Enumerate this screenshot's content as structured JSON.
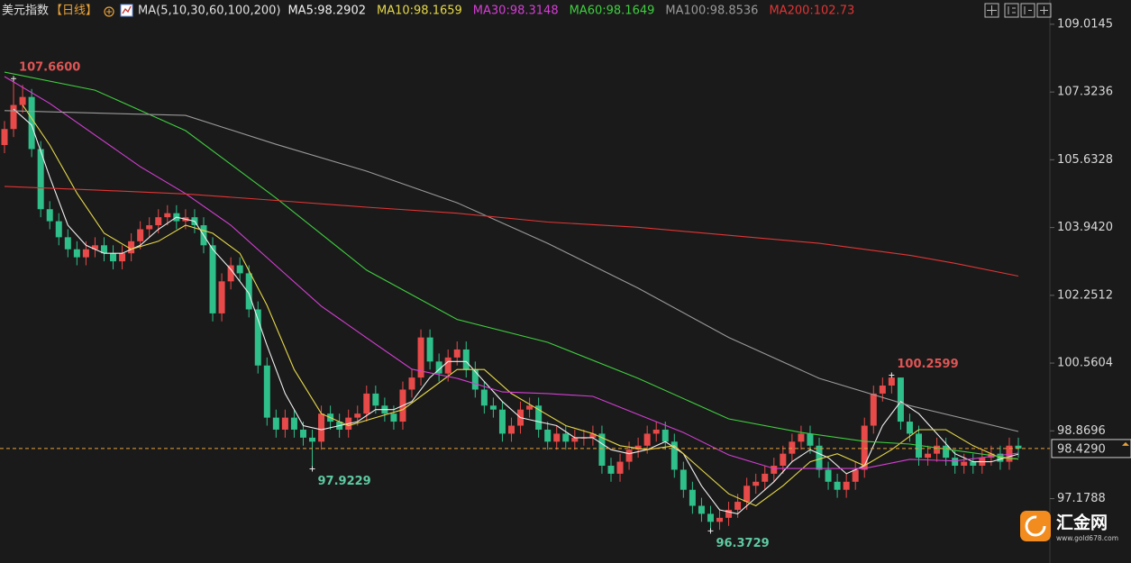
{
  "chart_data": {
    "type": "candlestick",
    "title": "美元指数",
    "period": "【日线】",
    "ma_label": "MA(5,10,30,60,100,200)",
    "ylim": [
      96.0,
      109.17
    ],
    "yticks": [
      97.1788,
      98.8696,
      100.5604,
      102.2512,
      {
        "value": 103.942,
        "label": "103.9420"
      },
      105.6328,
      107.3236,
      109.0145
    ],
    "up_color": "#e84a4a",
    "down_color": "#2fbf8a",
    "ohlc": {
      "open": [
        106.0,
        106.4,
        107.0,
        107.2,
        105.9,
        104.4,
        104.1,
        103.7,
        103.4,
        103.2,
        103.4,
        103.5,
        103.3,
        103.1,
        103.3,
        103.6,
        103.9,
        104.0,
        104.2,
        104.3,
        104.1,
        104.2,
        104.0,
        103.5,
        101.8,
        102.6,
        103.0,
        102.8,
        101.9,
        100.5,
        99.2,
        98.9,
        99.2,
        98.9,
        98.7,
        98.6,
        99.3,
        99.1,
        98.9,
        99.2,
        99.3,
        99.8,
        99.5,
        99.3,
        99.1,
        99.9,
        100.2,
        101.2,
        100.6,
        100.3,
        100.7,
        100.9,
        100.4,
        99.9,
        99.5,
        99.4,
        98.8,
        99.0,
        99.4,
        99.5,
        98.9,
        98.6,
        98.8,
        98.6,
        98.7,
        98.7,
        98.8,
        98.0,
        97.8,
        98.1,
        98.4,
        98.5,
        98.8,
        98.9,
        98.6,
        97.9,
        97.4,
        97.0,
        96.8,
        96.6,
        96.7,
        96.9,
        97.1,
        97.5,
        97.6,
        97.8,
        98.0,
        98.3,
        98.6,
        98.8,
        98.5,
        97.9,
        97.6,
        97.4,
        97.6,
        97.9,
        99.0,
        99.8,
        100.0,
        100.2,
        99.1,
        98.8,
        98.2,
        98.3,
        98.5,
        98.2,
        98.0,
        98.1,
        98.0,
        98.2,
        98.3,
        98.1,
        98.5
      ],
      "high": [
        106.6,
        107.66,
        107.5,
        107.4,
        106.1,
        104.6,
        104.3,
        103.9,
        103.6,
        103.6,
        103.7,
        103.7,
        103.5,
        103.5,
        103.8,
        104.1,
        104.2,
        104.4,
        104.5,
        104.5,
        104.4,
        104.4,
        104.2,
        103.7,
        102.8,
        103.2,
        103.2,
        103.0,
        102.1,
        100.7,
        99.4,
        99.4,
        99.4,
        99.1,
        98.9,
        99.5,
        99.5,
        99.3,
        99.4,
        99.5,
        100.0,
        100.0,
        99.7,
        99.5,
        100.1,
        100.4,
        101.4,
        101.4,
        100.8,
        100.9,
        101.1,
        101.1,
        100.6,
        100.1,
        99.7,
        99.6,
        99.2,
        99.6,
        99.7,
        99.7,
        99.1,
        99.0,
        99.0,
        98.9,
        98.9,
        99.0,
        99.0,
        98.2,
        98.3,
        98.6,
        98.7,
        99.0,
        99.1,
        99.1,
        98.8,
        98.1,
        97.6,
        97.2,
        97.0,
        96.9,
        97.1,
        97.3,
        97.7,
        97.8,
        98.0,
        98.2,
        98.5,
        98.8,
        99.0,
        99.0,
        98.7,
        98.1,
        97.8,
        97.8,
        98.1,
        99.2,
        100.0,
        100.2,
        100.2599,
        100.2,
        99.3,
        99.0,
        98.5,
        98.7,
        98.7,
        98.4,
        98.3,
        98.3,
        98.4,
        98.5,
        98.5,
        98.7,
        98.7
      ],
      "low": [
        105.8,
        106.2,
        106.8,
        105.7,
        104.2,
        103.9,
        103.5,
        103.2,
        103.0,
        103.0,
        103.2,
        103.1,
        102.9,
        102.9,
        103.1,
        103.4,
        103.7,
        103.8,
        104.0,
        103.9,
        103.9,
        103.8,
        103.3,
        101.6,
        101.6,
        102.4,
        102.6,
        101.7,
        100.3,
        99.0,
        98.7,
        98.7,
        98.7,
        98.5,
        97.9229,
        98.4,
        98.9,
        98.7,
        98.7,
        99.0,
        99.1,
        99.3,
        99.1,
        98.9,
        98.9,
        99.7,
        100.0,
        100.4,
        100.1,
        100.1,
        100.5,
        100.2,
        99.7,
        99.3,
        99.2,
        98.6,
        98.6,
        98.8,
        99.2,
        98.7,
        98.4,
        98.4,
        98.4,
        98.4,
        98.5,
        98.5,
        97.8,
        97.6,
        97.6,
        97.9,
        98.2,
        98.3,
        98.6,
        98.4,
        97.7,
        97.2,
        96.8,
        96.6,
        96.3729,
        96.4,
        96.5,
        96.7,
        96.9,
        97.3,
        97.4,
        97.6,
        97.8,
        98.1,
        98.4,
        98.3,
        97.7,
        97.4,
        97.2,
        97.2,
        97.4,
        97.7,
        98.8,
        99.6,
        99.8,
        98.9,
        98.6,
        98.0,
        98.0,
        98.1,
        98.0,
        97.8,
        97.8,
        97.8,
        97.8,
        98.0,
        97.9,
        97.9,
        98.2
      ],
      "close": [
        106.4,
        107.0,
        107.2,
        105.9,
        104.4,
        104.1,
        103.7,
        103.4,
        103.2,
        103.4,
        103.5,
        103.3,
        103.1,
        103.3,
        103.6,
        103.9,
        104.0,
        104.2,
        104.3,
        104.1,
        104.2,
        104.0,
        103.5,
        101.8,
        102.6,
        103.0,
        102.8,
        101.9,
        100.5,
        99.2,
        98.9,
        99.2,
        98.9,
        98.7,
        98.6,
        99.3,
        99.1,
        98.9,
        99.2,
        99.3,
        99.8,
        99.5,
        99.3,
        99.1,
        99.9,
        100.2,
        101.2,
        100.6,
        100.3,
        100.7,
        100.9,
        100.4,
        99.9,
        99.5,
        99.4,
        98.8,
        99.0,
        99.4,
        99.5,
        98.9,
        98.6,
        98.8,
        98.6,
        98.7,
        98.7,
        98.8,
        98.0,
        97.8,
        98.1,
        98.4,
        98.5,
        98.8,
        98.9,
        98.6,
        97.9,
        97.4,
        97.0,
        96.8,
        96.6,
        96.7,
        96.9,
        97.1,
        97.5,
        97.6,
        97.8,
        98.0,
        98.3,
        98.6,
        98.8,
        98.5,
        97.9,
        97.6,
        97.4,
        97.6,
        97.9,
        99.0,
        99.8,
        100.0,
        100.2,
        99.1,
        98.8,
        98.2,
        98.3,
        98.5,
        98.2,
        98.0,
        98.1,
        98.0,
        98.2,
        98.3,
        98.1,
        98.5,
        98.429
      ]
    },
    "series": [
      {
        "name": "MA5",
        "legend": "MA5:98.2902",
        "color": "#f0f0f0",
        "x": [
          1,
          3,
          5,
          7,
          9,
          11,
          13,
          15,
          17,
          19,
          21,
          23,
          25,
          27,
          29,
          31,
          33,
          35,
          37,
          39,
          41,
          43,
          45,
          47,
          49,
          51,
          53,
          55,
          57,
          59,
          61,
          63,
          65,
          67,
          69,
          71,
          73,
          75,
          77,
          79,
          81,
          83,
          85,
          87,
          89,
          91,
          93,
          95,
          97,
          99,
          101,
          103,
          105,
          107,
          109,
          112
        ],
        "values": [
          106.9,
          106.5,
          105.2,
          104.0,
          103.5,
          103.3,
          103.3,
          103.5,
          103.9,
          104.2,
          104.1,
          103.4,
          102.9,
          102.3,
          101.0,
          99.8,
          99.0,
          98.9,
          99.0,
          99.1,
          99.4,
          99.4,
          99.6,
          100.2,
          100.6,
          100.6,
          100.1,
          99.6,
          99.2,
          99.1,
          99.0,
          98.7,
          98.7,
          98.4,
          98.3,
          98.4,
          98.6,
          98.3,
          97.5,
          96.9,
          96.8,
          97.2,
          97.6,
          98.1,
          98.4,
          98.2,
          97.8,
          98.0,
          99.0,
          99.6,
          99.3,
          98.8,
          98.3,
          98.1,
          98.1,
          98.2902
        ]
      },
      {
        "name": "MA10",
        "legend": "MA10:98.1659",
        "color": "#e6d84a",
        "x": [
          2,
          5,
          8,
          11,
          14,
          17,
          20,
          23,
          26,
          29,
          32,
          35,
          38,
          41,
          44,
          47,
          50,
          53,
          56,
          59,
          62,
          65,
          68,
          71,
          74,
          77,
          80,
          83,
          86,
          89,
          92,
          95,
          98,
          101,
          104,
          107,
          110,
          112
        ],
        "values": [
          107.0,
          106.0,
          104.8,
          103.8,
          103.4,
          103.6,
          104.0,
          103.8,
          103.3,
          102.0,
          100.4,
          99.3,
          99.0,
          99.2,
          99.4,
          99.9,
          100.4,
          100.4,
          99.8,
          99.4,
          99.0,
          98.8,
          98.5,
          98.4,
          98.5,
          97.9,
          97.3,
          97.0,
          97.5,
          98.1,
          98.3,
          98.0,
          98.4,
          98.9,
          98.9,
          98.5,
          98.2,
          98.1659
        ]
      },
      {
        "name": "MA30",
        "legend": "MA30:98.3148",
        "color": "#d43fd4",
        "x": [
          0,
          5,
          10,
          15,
          20,
          25,
          30,
          35,
          40,
          45,
          50,
          55,
          60,
          65,
          70,
          75,
          80,
          85,
          90,
          95,
          100,
          105,
          112
        ],
        "values": [
          107.71,
          107.04,
          106.25,
          105.46,
          104.79,
          104.0,
          102.99,
          101.98,
          101.19,
          100.41,
          100.18,
          99.84,
          99.8,
          99.73,
          99.28,
          98.83,
          98.27,
          97.93,
          97.93,
          97.93,
          98.16,
          98.12,
          98.3148
        ]
      },
      {
        "name": "MA60",
        "legend": "MA60:98.1649",
        "color": "#3fce3f",
        "x": [
          0,
          10,
          20,
          30,
          40,
          50,
          60,
          70,
          80,
          88,
          95,
          100,
          112
        ],
        "values": [
          107.82,
          107.37,
          106.36,
          104.68,
          102.88,
          101.65,
          101.08,
          100.18,
          99.17,
          98.83,
          98.61,
          98.54,
          98.1649
        ]
      },
      {
        "name": "MA100",
        "legend": "MA100:98.8536",
        "color": "#9a9a9a",
        "x": [
          0,
          20,
          30,
          40,
          50,
          60,
          70,
          80,
          90,
          100,
          112
        ],
        "values": [
          106.86,
          106.74,
          106.02,
          105.35,
          104.56,
          103.55,
          102.43,
          101.2,
          100.18,
          99.5,
          98.8536
        ]
      },
      {
        "name": "MA200",
        "legend": "MA200:102.73",
        "color": "#e03535",
        "x": [
          0,
          10,
          20,
          30,
          40,
          50,
          60,
          70,
          80,
          90,
          100,
          105,
          112
        ],
        "values": [
          104.97,
          104.88,
          104.78,
          104.62,
          104.45,
          104.3,
          104.08,
          103.95,
          103.75,
          103.55,
          103.25,
          103.05,
          102.73
        ]
      }
    ],
    "annotations": [
      {
        "x": 1,
        "value": 107.66,
        "label": "107.6600",
        "kind": "high"
      },
      {
        "x": 34,
        "value": 97.9229,
        "label": "97.9229",
        "kind": "low"
      },
      {
        "x": 78,
        "value": 96.3729,
        "label": "96.3729",
        "kind": "low"
      },
      {
        "x": 98,
        "value": 100.2599,
        "label": "100.2599",
        "kind": "high"
      }
    ],
    "last": {
      "value": 98.429,
      "label": "98.4290",
      "color": "#e8a23a"
    }
  },
  "watermark": {
    "name": "汇金网",
    "url": "www.gold678.com"
  }
}
